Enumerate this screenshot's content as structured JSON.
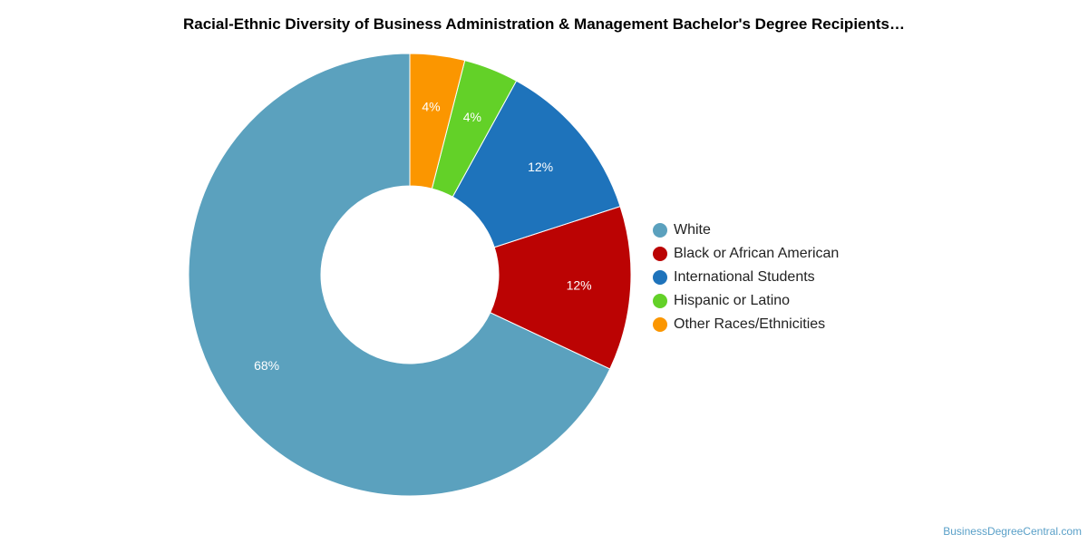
{
  "chart_data": {
    "type": "pie",
    "title": "Racial-Ethnic Diversity of Business Administration & Management Bachelor's Degree Recipients…",
    "slices": [
      {
        "name": "White",
        "value": 68,
        "label": "68%",
        "color": "#5ba1be"
      },
      {
        "name": "Black or African American",
        "value": 12,
        "label": "12%",
        "color": "#bb0303"
      },
      {
        "name": "International Students",
        "value": 12,
        "label": "12%",
        "color": "#1e73bb"
      },
      {
        "name": "Hispanic or Latino",
        "value": 4,
        "label": "4%",
        "color": "#63d128"
      },
      {
        "name": "Other Races/Ethnicities",
        "value": 4,
        "label": "4%",
        "color": "#fb9600"
      }
    ],
    "legend_position": "right",
    "donut": true
  },
  "footer": {
    "credit": "BusinessDegreeCentral.com"
  }
}
